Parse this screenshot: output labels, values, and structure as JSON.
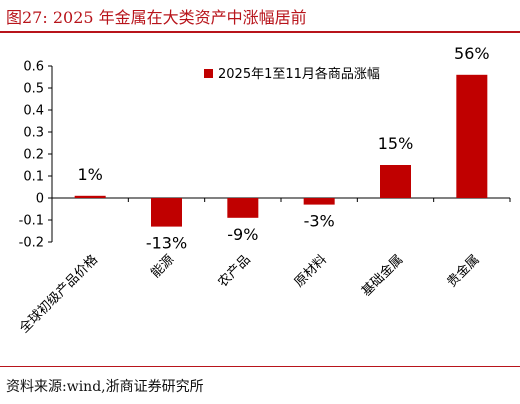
{
  "figure": {
    "label": "图27:",
    "title": "2025 年金属在大类资产中涨幅居前",
    "source": "资料来源:wind,浙商证券研究所"
  },
  "chart_data": {
    "type": "bar",
    "categories": [
      "全球初级产品价格",
      "能源",
      "农产品",
      "原材料",
      "基础金属",
      "贵金属"
    ],
    "series": [
      {
        "name": "2025年1至11月各商品涨幅",
        "values": [
          0.01,
          -0.13,
          -0.09,
          -0.03,
          0.15,
          0.56
        ],
        "color": "#c00000"
      }
    ],
    "data_labels": [
      "1%",
      "-13%",
      "-9%",
      "-3%",
      "15%",
      "56%"
    ],
    "ylim": [
      -0.2,
      0.6
    ],
    "yticks": [
      "-0.2",
      "-0.1",
      "0",
      "0.1",
      "0.2",
      "0.3",
      "0.4",
      "0.5",
      "0.6"
    ],
    "grid": false,
    "legend_position": "top-center"
  }
}
